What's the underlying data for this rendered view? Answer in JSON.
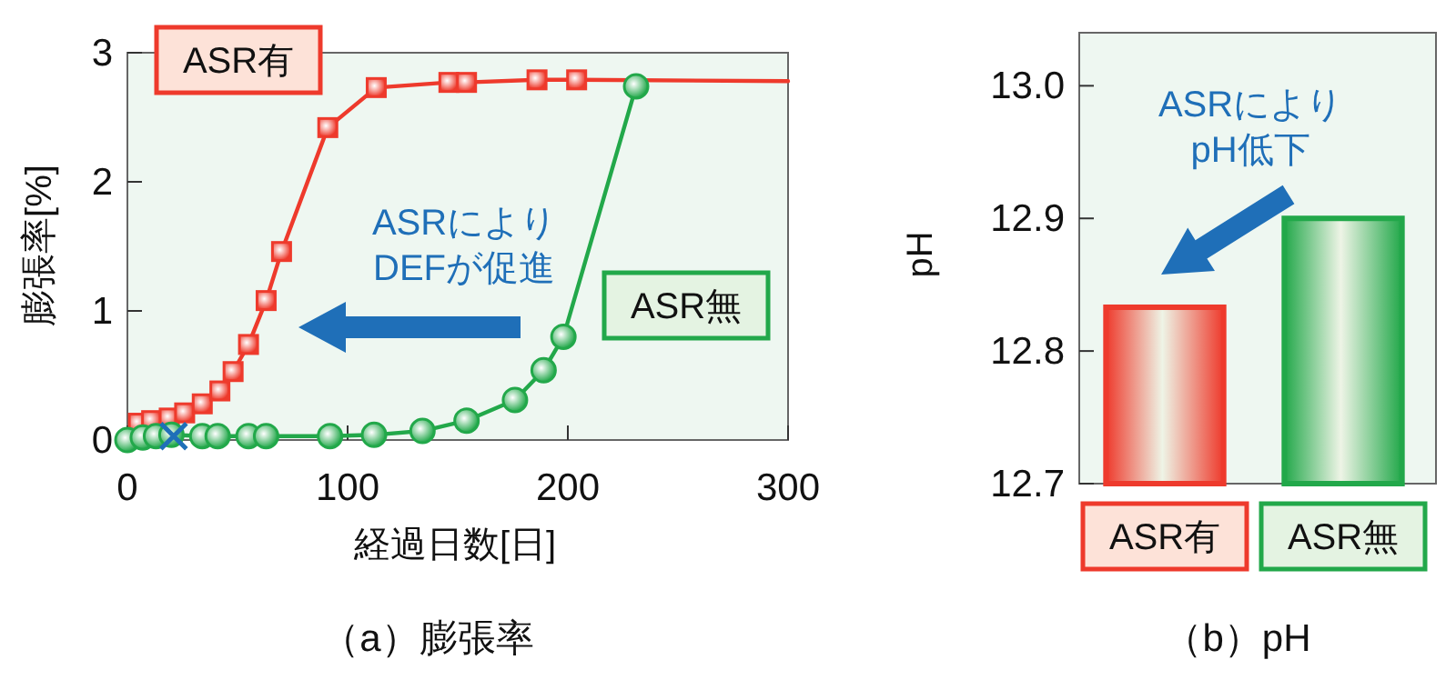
{
  "chart_data": [
    {
      "type": "line",
      "title": "（a）膨張率",
      "xlabel": "経過日数[日]",
      "ylabel": "膨張率[%]",
      "xlim": [
        0,
        300
      ],
      "ylim": [
        0,
        3
      ],
      "xticks": [
        0,
        100,
        200,
        300
      ],
      "yticks": [
        0,
        1,
        2,
        3
      ],
      "annotations": [
        "ASRにより\nDEFが促進"
      ],
      "series": [
        {
          "name": "ASR有",
          "color": "#ee3a2c",
          "marker": "square",
          "x": [
            5,
            11,
            19,
            26,
            34,
            42,
            48,
            55,
            63,
            70,
            91,
            113,
            146,
            154,
            186,
            204
          ],
          "values": [
            0.13,
            0.15,
            0.17,
            0.21,
            0.28,
            0.38,
            0.53,
            0.74,
            1.08,
            1.46,
            2.42,
            2.73,
            2.77,
            2.77,
            2.79,
            2.79
          ]
        },
        {
          "color": "#ee3a2c",
          "marker": "none",
          "x": [
            204,
            300
          ],
          "values": [
            2.79,
            2.78
          ]
        },
        {
          "name": "ASR無",
          "color": "#22a84a",
          "marker": "circle",
          "x": [
            0,
            7,
            13,
            20,
            34,
            41,
            55,
            63,
            92,
            112,
            134,
            154,
            176,
            189,
            198,
            231
          ],
          "values": [
            0,
            0.02,
            0.03,
            0.04,
            0.03,
            0.03,
            0.03,
            0.03,
            0.03,
            0.04,
            0.07,
            0.15,
            0.31,
            0.54,
            0.8,
            2.74
          ]
        },
        {
          "type": "scatter",
          "color": "#1f6fb8",
          "marker": "cross",
          "x": [
            21
          ],
          "values": [
            0.03
          ]
        }
      ]
    },
    {
      "type": "bar",
      "title": "（b）pH",
      "ylabel": "pH",
      "categories": [
        "ASR有",
        "ASR無"
      ],
      "values": [
        12.833,
        12.9
      ],
      "colors": [
        "#ee3a2c",
        "#22a84a"
      ],
      "ylim": [
        12.7,
        13.04
      ],
      "yticks": [
        {
          "value": 12.7,
          "label": "12.7"
        },
        {
          "value": 12.8,
          "label": "12.8"
        },
        {
          "value": 12.9,
          "label": "12.9"
        },
        {
          "value": 13,
          "label": "13.0"
        }
      ],
      "annotations": [
        "ASRにより\npH低下"
      ]
    }
  ]
}
